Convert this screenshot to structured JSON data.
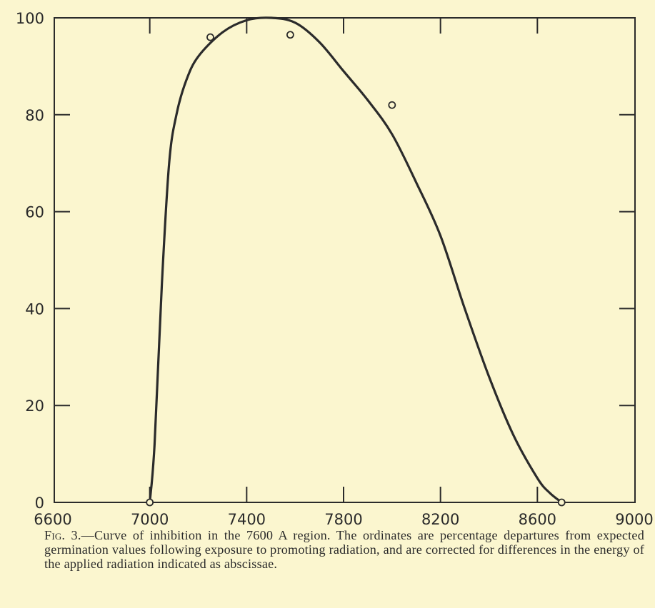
{
  "chart_data": {
    "type": "line",
    "title": "",
    "xlabel": "",
    "ylabel": "",
    "xlim": [
      6600,
      9000
    ],
    "ylim": [
      0,
      100
    ],
    "x_ticks": [
      6600,
      7000,
      7400,
      7800,
      8200,
      8600,
      9000
    ],
    "x_tick_labels": [
      "6600",
      "7000",
      "7400",
      "7800",
      "8200",
      "8600",
      "9000"
    ],
    "y_ticks": [
      0,
      20,
      40,
      60,
      80,
      100
    ],
    "y_tick_labels": [
      "0",
      "20",
      "40",
      "60",
      "80",
      "100"
    ],
    "grid": false,
    "series": [
      {
        "style": "line",
        "points": [
          [
            7000,
            0
          ],
          [
            7020,
            12
          ],
          [
            7050,
            45
          ],
          [
            7080,
            70
          ],
          [
            7110,
            80
          ],
          [
            7150,
            87
          ],
          [
            7200,
            92
          ],
          [
            7300,
            97
          ],
          [
            7400,
            99.5
          ],
          [
            7500,
            100
          ],
          [
            7600,
            99
          ],
          [
            7700,
            95
          ],
          [
            7800,
            89
          ],
          [
            7900,
            83
          ],
          [
            8000,
            76
          ],
          [
            8100,
            66
          ],
          [
            8200,
            55
          ],
          [
            8300,
            40
          ],
          [
            8400,
            26
          ],
          [
            8500,
            14
          ],
          [
            8600,
            5
          ],
          [
            8650,
            2
          ],
          [
            8700,
            0
          ]
        ]
      },
      {
        "style": "markers",
        "points": [
          [
            7000,
            0
          ],
          [
            7250,
            96
          ],
          [
            7580,
            96.5
          ],
          [
            8000,
            82
          ],
          [
            8700,
            0
          ]
        ]
      }
    ]
  },
  "caption": {
    "label": "Fig. 3.",
    "text": "—Curve of inhibition in the 7600 A region. The ordinates are percentage departures from expected germination values following exposure to promoting radiation, and are corrected for differences in the energy of the applied radiation indicated as abscissae."
  }
}
